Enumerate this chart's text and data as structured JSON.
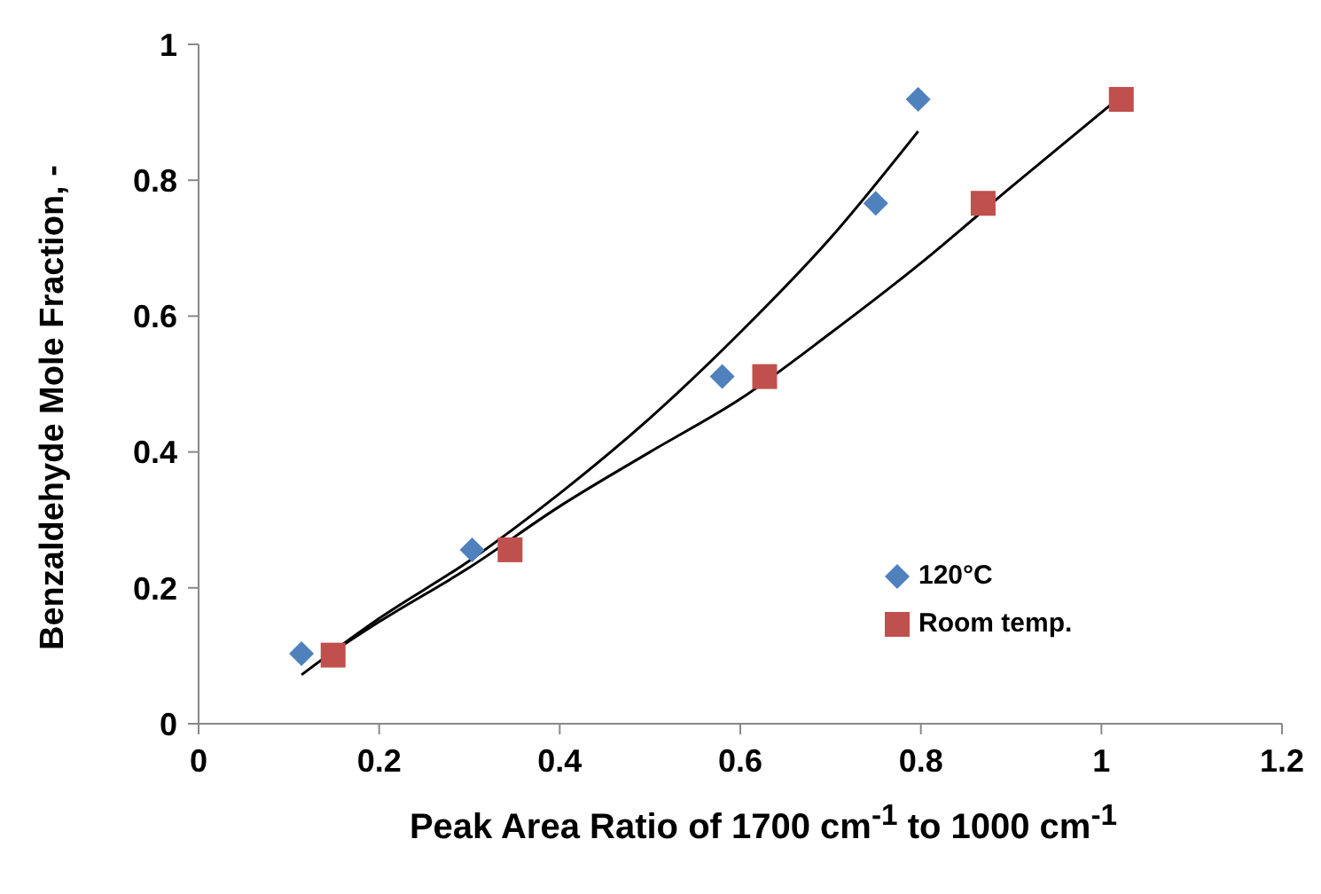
{
  "chart_data": {
    "type": "scatter",
    "xlabel": "Peak Area Ratio of 1700 cm$^{-1}$ to 1000 cm$^{-1}$",
    "ylabel": "Benzaldehyde Mole Fraction, -",
    "xlim": [
      0,
      1.2
    ],
    "xticks": [
      0,
      0.2,
      0.4,
      0.6,
      0.8,
      1,
      1.2
    ],
    "ylim": [
      0,
      1
    ],
    "yticks": [
      0,
      0.2,
      0.4,
      0.6,
      0.8,
      1
    ],
    "grid": false,
    "legend": "bottom right",
    "series": [
      {
        "name": "120°C",
        "marker": "diamond",
        "color": "#4f81bd",
        "x": [
          0.114,
          0.303,
          0.58,
          0.75,
          0.797
        ],
        "values": [
          0.103,
          0.256,
          0.511,
          0.766,
          0.919
        ]
      },
      {
        "name": "Room temp.",
        "marker": "square",
        "color": "#c0504d",
        "x": [
          0.149,
          0.345,
          0.627,
          0.869,
          1.022
        ],
        "values": [
          0.101,
          0.256,
          0.511,
          0.766,
          0.919
        ]
      },
      {
        "type": "line",
        "marker": "none",
        "color": "#000000",
        "x": [
          0.114,
          0.2,
          0.3,
          0.4,
          0.5,
          0.6,
          0.7,
          0.797
        ],
        "values": [
          0.072,
          0.155,
          0.24,
          0.339,
          0.45,
          0.576,
          0.715,
          0.872
        ]
      },
      {
        "type": "line",
        "marker": "none",
        "color": "#000000",
        "x": [
          0.149,
          0.2,
          0.3,
          0.4,
          0.5,
          0.6,
          0.7,
          0.8,
          0.9,
          1.022
        ],
        "values": [
          0.106,
          0.15,
          0.23,
          0.32,
          0.4,
          0.478,
          0.575,
          0.678,
          0.79,
          0.924
        ]
      }
    ]
  }
}
